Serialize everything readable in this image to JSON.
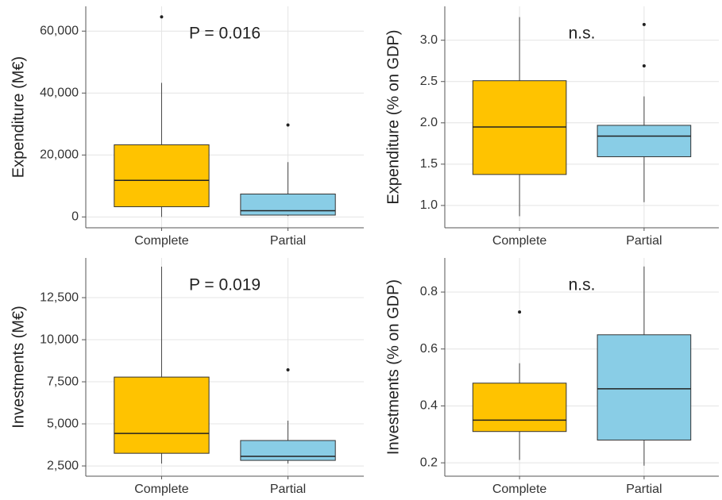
{
  "chart_data": [
    {
      "type": "box",
      "y_label": "Expenditure (M€)",
      "annotation": "P = 0.016",
      "categories": [
        "Complete",
        "Partial"
      ],
      "colors": [
        "#ffc300",
        "#89cde6"
      ],
      "stats": [
        {
          "low": 0,
          "q1": 3300,
          "median": 11800,
          "q3": 23300,
          "high": 43300,
          "outliers": [
            64600
          ]
        },
        {
          "low": 300,
          "q1": 600,
          "median": 2000,
          "q3": 7400,
          "high": 17700,
          "outliers": [
            29700
          ]
        }
      ],
      "ylim": [
        -3500,
        68000
      ],
      "yticks": [
        0,
        {
          "value": 20000,
          "label": "20,000"
        },
        {
          "value": 40000,
          "label": "40,000"
        },
        {
          "value": 60000,
          "label": "60,000"
        }
      ],
      "grid": true
    },
    {
      "type": "box",
      "y_label": "Expenditure (% on GDP)",
      "annotation": "n.s.",
      "categories": [
        "Complete",
        "Partial"
      ],
      "colors": [
        "#ffc300",
        "#89cde6"
      ],
      "stats": [
        {
          "low": 0.87,
          "q1": 1.375,
          "median": 1.95,
          "q3": 2.51,
          "high": 3.28,
          "outliers": []
        },
        {
          "low": 1.04,
          "q1": 1.59,
          "median": 1.84,
          "q3": 1.97,
          "high": 2.32,
          "outliers": [
            2.69,
            3.19
          ]
        }
      ],
      "ylim": [
        0.73,
        3.41
      ],
      "yticks": [
        {
          "value": 1,
          "label": "1.0"
        },
        1.5,
        {
          "value": 2,
          "label": "2.0"
        },
        2.5,
        {
          "value": 3,
          "label": "3.0"
        }
      ],
      "grid": true
    },
    {
      "type": "box",
      "y_label": "Investments (M€)",
      "annotation": "P = 0.019",
      "categories": [
        "Complete",
        "Partial"
      ],
      "colors": [
        "#ffc300",
        "#89cde6"
      ],
      "stats": [
        {
          "low": 2640,
          "q1": 3250,
          "median": 4430,
          "q3": 7780,
          "high": 14340,
          "outliers": []
        },
        {
          "low": 2640,
          "q1": 2830,
          "median": 3070,
          "q3": 4010,
          "high": 5190,
          "outliers": [
            8210
          ]
        }
      ],
      "ylim": [
        1890,
        14860
      ],
      "yticks": [
        {
          "value": 2500,
          "label": "2,500"
        },
        {
          "value": 5000,
          "label": "5,000"
        },
        {
          "value": 7500,
          "label": "7,500"
        },
        {
          "value": 10000,
          "label": "10,000"
        },
        {
          "value": 12500,
          "label": "12,500"
        }
      ],
      "grid": true
    },
    {
      "type": "box",
      "y_label": "Investments (% on GDP)",
      "annotation": "n.s.",
      "categories": [
        "Complete",
        "Partial"
      ],
      "colors": [
        "#ffc300",
        "#89cde6"
      ],
      "stats": [
        {
          "low": 0.21,
          "q1": 0.31,
          "median": 0.35,
          "q3": 0.48,
          "high": 0.55,
          "outliers": [
            0.73
          ]
        },
        {
          "low": 0.19,
          "q1": 0.28,
          "median": 0.46,
          "q3": 0.65,
          "high": 0.89,
          "outliers": []
        }
      ],
      "ylim": [
        0.153,
        0.92
      ],
      "yticks": [
        0.2,
        0.4,
        0.6,
        0.8
      ],
      "grid": true
    }
  ]
}
